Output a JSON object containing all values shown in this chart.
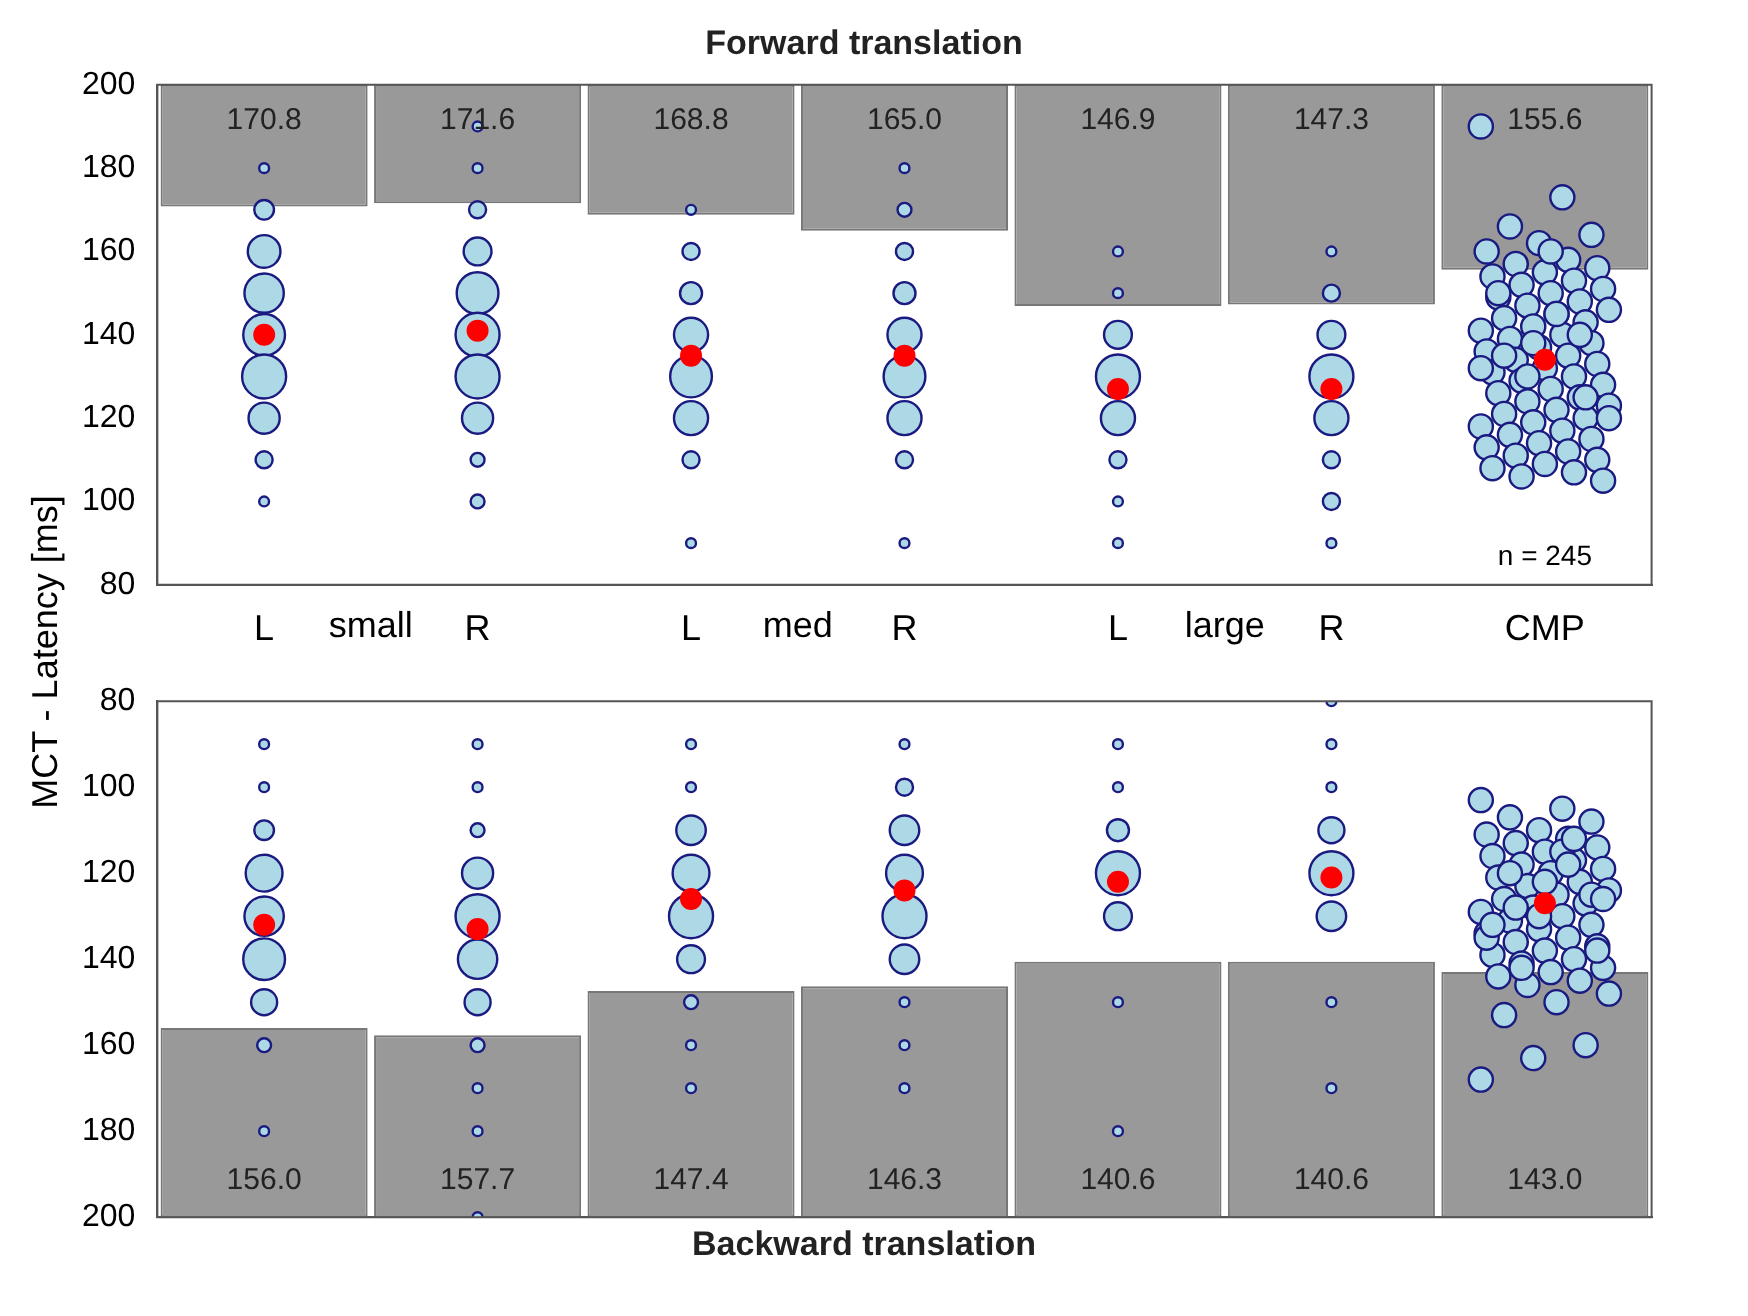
{
  "chart_data": [
    {
      "type": "bar",
      "title": "Forward translation",
      "ylabel": "MCT - Latency [ms]",
      "categories": [
        "L",
        "R",
        "L",
        "R",
        "L",
        "R",
        "CMP"
      ],
      "base": [
        170.8,
        171.6,
        168.8,
        165.0,
        146.9,
        147.3,
        155.6
      ],
      "values": [
        29.2,
        28.4,
        31.2,
        35.0,
        53.1,
        52.7,
        44.4
      ],
      "color": "#999999",
      "ylim": [
        80,
        200
      ],
      "yticks": [
        80,
        100,
        120,
        140,
        160,
        180,
        200
      ],
      "annotations": [
        "170.8",
        "171.6",
        "168.8",
        "165.0",
        "146.9",
        "147.3",
        "155.6",
        "small",
        "med",
        "large",
        "n = 245"
      ],
      "series": [
        {
          "type": "bubble",
          "color": "#add8e6",
          "values": [
            null,
            null,
            90,
            90,
            90,
            90,
            null
          ],
          "sizes": [
            null,
            null,
            0.05,
            0.05,
            0.05,
            0.05,
            null
          ]
        },
        {
          "type": "bubble",
          "color": "#add8e6",
          "values": [
            100,
            100,
            null,
            null,
            100,
            100,
            null
          ],
          "sizes": [
            0.05,
            0.1,
            null,
            null,
            0.05,
            0.15,
            null
          ]
        },
        {
          "type": "bubble",
          "color": "#add8e6",
          "values": [
            110,
            110,
            110,
            110,
            110,
            110,
            null
          ],
          "sizes": [
            0.15,
            0.1,
            0.15,
            0.15,
            0.15,
            0.15,
            null
          ]
        },
        {
          "type": "bubble",
          "color": "#add8e6",
          "values": [
            120,
            120,
            120,
            120,
            120,
            120,
            null
          ],
          "sizes": [
            0.5,
            0.5,
            0.6,
            0.6,
            0.6,
            0.6,
            null
          ]
        },
        {
          "type": "bubble",
          "color": "#add8e6",
          "values": [
            130,
            130,
            130,
            130,
            130,
            130,
            null
          ],
          "sizes": [
            1,
            1,
            0.9,
            0.9,
            1,
            1,
            null
          ]
        },
        {
          "type": "bubble",
          "color": "#add8e6",
          "values": [
            140,
            140,
            140,
            140,
            140,
            140,
            null
          ],
          "sizes": [
            0.9,
            1,
            0.6,
            0.6,
            0.4,
            0.4,
            null
          ]
        },
        {
          "type": "bubble",
          "color": "#add8e6",
          "values": [
            150,
            150,
            150,
            150,
            150,
            150,
            null
          ],
          "sizes": [
            0.8,
            0.9,
            0.25,
            0.25,
            0.05,
            0.15,
            null
          ]
        },
        {
          "type": "bubble",
          "color": "#add8e6",
          "values": [
            160,
            160,
            160,
            160,
            160,
            160,
            null
          ],
          "sizes": [
            0.55,
            0.4,
            0.15,
            0.15,
            0.05,
            0.05,
            null
          ]
        },
        {
          "type": "bubble",
          "color": "#add8e6",
          "values": [
            170,
            170,
            170,
            170,
            null,
            null,
            null
          ],
          "sizes": [
            0.2,
            0.15,
            0.05,
            0.1,
            null,
            null,
            null
          ]
        },
        {
          "type": "bubble",
          "color": "#add8e6",
          "values": [
            180,
            180,
            null,
            180,
            null,
            null,
            null
          ],
          "sizes": [
            0.05,
            0.05,
            null,
            0.05,
            null,
            null,
            null
          ]
        },
        {
          "type": "bubble",
          "color": "#add8e6",
          "values": [
            null,
            190,
            null,
            null,
            null,
            null,
            null
          ],
          "sizes": [
            null,
            0.05,
            null,
            null,
            null,
            null,
            null
          ]
        },
        {
          "type": "bubble",
          "color": "#add8e6",
          "x": [
            "CMP",
            "CMP",
            "CMP",
            "CMP",
            "CMP",
            "CMP",
            "CMP",
            "CMP",
            "CMP",
            "CMP",
            "CMP",
            "CMP",
            "CMP",
            "CMP",
            "CMP",
            "CMP",
            "CMP",
            "CMP",
            "CMP",
            "CMP",
            "CMP",
            "CMP",
            "CMP",
            "CMP",
            "CMP",
            "CMP",
            "CMP",
            "CMP",
            "CMP",
            "CMP",
            "CMP",
            "CMP",
            "CMP",
            "CMP",
            "CMP",
            "CMP",
            "CMP",
            "CMP",
            "CMP",
            "CMP",
            "CMP",
            "CMP",
            "CMP",
            "CMP",
            "CMP",
            "CMP",
            "CMP",
            "CMP",
            "CMP",
            "CMP",
            "CMP",
            "CMP",
            "CMP",
            "CMP",
            "CMP",
            "CMP",
            "CMP",
            "CMP",
            "CMP",
            "CMP",
            "CMP",
            "CMP",
            "CMP",
            "CMP",
            "CMP",
            "CMP",
            "CMP",
            "CMP",
            "CMP",
            "CMP"
          ],
          "values": [
            190,
            173,
            166,
            164,
            162,
            160,
            158,
            157,
            156,
            155,
            154,
            153,
            152,
            151,
            150,
            149,
            148,
            147,
            146,
            145,
            144,
            143,
            142,
            141,
            140,
            139,
            138,
            137,
            136,
            135,
            134,
            133,
            132,
            131,
            130,
            129,
            128,
            127,
            126,
            125,
            124,
            123,
            122,
            121,
            120,
            119,
            118,
            117,
            116,
            115,
            114,
            113,
            112,
            111,
            110,
            109,
            108,
            107,
            106,
            105,
            160,
            150,
            140,
            130,
            120,
            145,
            135,
            125,
            138,
            132
          ],
          "sizes": [
            0.3,
            0.3,
            0.3,
            0.3,
            0.3,
            0.3,
            0.3,
            0.3,
            0.3,
            0.3,
            0.3,
            0.3,
            0.3,
            0.3,
            0.3,
            0.3,
            0.3,
            0.3,
            0.3,
            0.3,
            0.3,
            0.3,
            0.3,
            0.3,
            0.3,
            0.3,
            0.3,
            0.3,
            0.3,
            0.3,
            0.3,
            0.3,
            0.3,
            0.3,
            0.3,
            0.3,
            0.3,
            0.3,
            0.3,
            0.3,
            0.3,
            0.3,
            0.3,
            0.3,
            0.3,
            0.3,
            0.3,
            0.3,
            0.3,
            0.3,
            0.3,
            0.3,
            0.3,
            0.3,
            0.3,
            0.3,
            0.3,
            0.3,
            0.3,
            0.3,
            0.3,
            0.3,
            0.3,
            0.3,
            0.3,
            0.3,
            0.3,
            0.3,
            0.3,
            0.3
          ]
        },
        {
          "type": "scatter",
          "color": "#ff0000",
          "values": [
            140,
            141,
            135,
            135,
            127,
            127,
            134
          ]
        }
      ]
    },
    {
      "type": "bar",
      "title": "Backward translation",
      "categories": [
        "L",
        "R",
        "L",
        "R",
        "L",
        "R",
        "CMP"
      ],
      "base": [
        156.0,
        157.7,
        147.4,
        146.3,
        140.6,
        140.6,
        143.0
      ],
      "values": [
        44.0,
        42.3,
        52.6,
        53.7,
        59.4,
        59.4,
        57.0
      ],
      "annotations": [
        "156.0",
        "157.7",
        "147.4",
        "146.3",
        "140.6",
        "140.6",
        "143.0"
      ],
      "color": "#999999",
      "ylim": [
        200,
        80
      ],
      "yticks": [
        80,
        100,
        120,
        140,
        160,
        180,
        200
      ],
      "tick_labels": "y",
      "series": [
        {
          "type": "bubble",
          "color": "#add8e6",
          "values": [
            null,
            null,
            null,
            null,
            null,
            80,
            null
          ],
          "sizes": [
            null,
            null,
            null,
            null,
            null,
            0.05,
            null
          ]
        },
        {
          "type": "bubble",
          "color": "#add8e6",
          "values": [
            90,
            90,
            90,
            90,
            90,
            90,
            null
          ],
          "sizes": [
            0.05,
            0.05,
            0.05,
            0.05,
            0.05,
            0.05,
            null
          ]
        },
        {
          "type": "bubble",
          "color": "#add8e6",
          "values": [
            100,
            100,
            100,
            100,
            100,
            100,
            null
          ],
          "sizes": [
            0.05,
            0.05,
            0.05,
            0.15,
            0.05,
            0.05,
            null
          ]
        },
        {
          "type": "bubble",
          "color": "#add8e6",
          "values": [
            110,
            110,
            110,
            110,
            110,
            110,
            null
          ],
          "sizes": [
            0.2,
            0.1,
            0.45,
            0.45,
            0.25,
            0.35,
            null
          ]
        },
        {
          "type": "bubble",
          "color": "#add8e6",
          "values": [
            120,
            120,
            120,
            120,
            120,
            120,
            null
          ],
          "sizes": [
            0.7,
            0.5,
            0.7,
            0.7,
            1,
            1,
            null
          ]
        },
        {
          "type": "bubble",
          "color": "#add8e6",
          "values": [
            130,
            130,
            130,
            130,
            130,
            130,
            null
          ],
          "sizes": [
            0.8,
            1,
            1,
            1,
            0.4,
            0.45,
            null
          ]
        },
        {
          "type": "bubble",
          "color": "#add8e6",
          "values": [
            140,
            140,
            140,
            140,
            null,
            null,
            null
          ],
          "sizes": [
            0.9,
            0.8,
            0.4,
            0.45,
            null,
            null,
            null
          ]
        },
        {
          "type": "bubble",
          "color": "#add8e6",
          "values": [
            150,
            150,
            150,
            150,
            150,
            150,
            null
          ],
          "sizes": [
            0.35,
            0.35,
            0.1,
            0.05,
            0.05,
            0.05,
            null
          ]
        },
        {
          "type": "bubble",
          "color": "#add8e6",
          "values": [
            160,
            160,
            160,
            160,
            null,
            null,
            null
          ],
          "sizes": [
            0.1,
            0.1,
            0.05,
            0.05,
            null,
            null,
            null
          ]
        },
        {
          "type": "bubble",
          "color": "#add8e6",
          "values": [
            null,
            170,
            170,
            170,
            null,
            170,
            null
          ],
          "sizes": [
            null,
            0.05,
            0.05,
            0.05,
            null,
            0.05,
            null
          ]
        },
        {
          "type": "bubble",
          "color": "#add8e6",
          "values": [
            180,
            180,
            null,
            null,
            180,
            null,
            null
          ],
          "sizes": [
            0.05,
            0.05,
            null,
            null,
            0.05,
            null,
            null
          ]
        },
        {
          "type": "bubble",
          "color": "#add8e6",
          "values": [
            null,
            200,
            null,
            null,
            null,
            null,
            null
          ],
          "sizes": [
            null,
            0.05,
            null,
            null,
            null,
            null,
            null
          ]
        },
        {
          "type": "bubble",
          "color": "#add8e6",
          "x": [
            "CMP",
            "CMP",
            "CMP",
            "CMP",
            "CMP",
            "CMP",
            "CMP",
            "CMP",
            "CMP",
            "CMP",
            "CMP",
            "CMP",
            "CMP",
            "CMP",
            "CMP",
            "CMP",
            "CMP",
            "CMP",
            "CMP",
            "CMP",
            "CMP",
            "CMP",
            "CMP",
            "CMP",
            "CMP",
            "CMP",
            "CMP",
            "CMP",
            "CMP",
            "CMP",
            "CMP",
            "CMP",
            "CMP",
            "CMP",
            "CMP",
            "CMP",
            "CMP",
            "CMP",
            "CMP",
            "CMP",
            "CMP",
            "CMP",
            "CMP",
            "CMP",
            "CMP",
            "CMP",
            "CMP",
            "CMP",
            "CMP",
            "CMP",
            "CMP",
            "CMP",
            "CMP",
            "CMP",
            "CMP",
            "CMP",
            "CMP",
            "CMP",
            "CMP",
            "CMP"
          ],
          "values": [
            103,
            105,
            107,
            108,
            110,
            111,
            112,
            113,
            114,
            115,
            116,
            117,
            118,
            119,
            120,
            121,
            122,
            123,
            124,
            125,
            126,
            127,
            128,
            129,
            130,
            131,
            132,
            133,
            134,
            135,
            136,
            137,
            138,
            139,
            140,
            141,
            142,
            143,
            144,
            145,
            146,
            148,
            150,
            153,
            160,
            163,
            168,
            115,
            120,
            125,
            130,
            135,
            118,
            128,
            138,
            122,
            132,
            112,
            142,
            126
          ],
          "sizes": [
            0.3,
            0.3,
            0.3,
            0.3,
            0.3,
            0.3,
            0.3,
            0.3,
            0.3,
            0.3,
            0.3,
            0.3,
            0.3,
            0.3,
            0.3,
            0.3,
            0.3,
            0.3,
            0.3,
            0.3,
            0.3,
            0.3,
            0.3,
            0.3,
            0.3,
            0.3,
            0.3,
            0.3,
            0.3,
            0.3,
            0.3,
            0.3,
            0.3,
            0.3,
            0.3,
            0.3,
            0.3,
            0.3,
            0.3,
            0.3,
            0.3,
            0.3,
            0.3,
            0.3,
            0.3,
            0.3,
            0.3,
            0.3,
            0.3,
            0.3,
            0.3,
            0.3,
            0.3,
            0.3,
            0.3,
            0.3,
            0.3,
            0.3,
            0.3,
            0.3
          ]
        },
        {
          "type": "scatter",
          "color": "#ff0000",
          "values": [
            132,
            133,
            126,
            124,
            122,
            121,
            127
          ]
        }
      ]
    }
  ]
}
